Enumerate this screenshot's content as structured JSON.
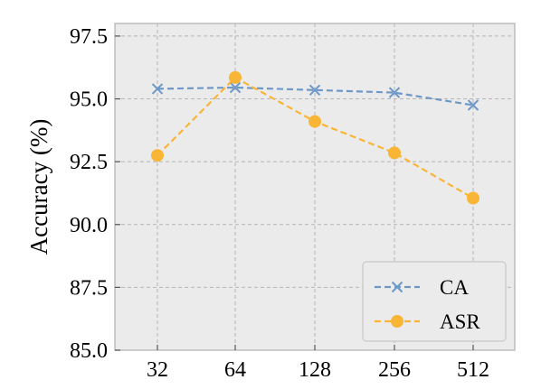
{
  "chart_data": {
    "type": "line",
    "title": "",
    "xlabel": "",
    "ylabel": "Accuracy (%)",
    "categories": [
      "32",
      "64",
      "128",
      "256",
      "512"
    ],
    "ylim": [
      85.0,
      98.0
    ],
    "yticks": [
      "85.0",
      "87.5",
      "90.0",
      "92.5",
      "95.0",
      "97.5"
    ],
    "grid": true,
    "legend_position": "lower-right",
    "series": [
      {
        "name": "CA",
        "values": [
          95.4,
          95.45,
          95.35,
          95.25,
          94.75
        ],
        "color": "#6f98c8",
        "marker": "x-icon"
      },
      {
        "name": "ASR",
        "values": [
          92.75,
          95.85,
          94.1,
          92.85,
          91.05
        ],
        "color": "#f9b535",
        "marker": "circle-icon"
      }
    ]
  }
}
